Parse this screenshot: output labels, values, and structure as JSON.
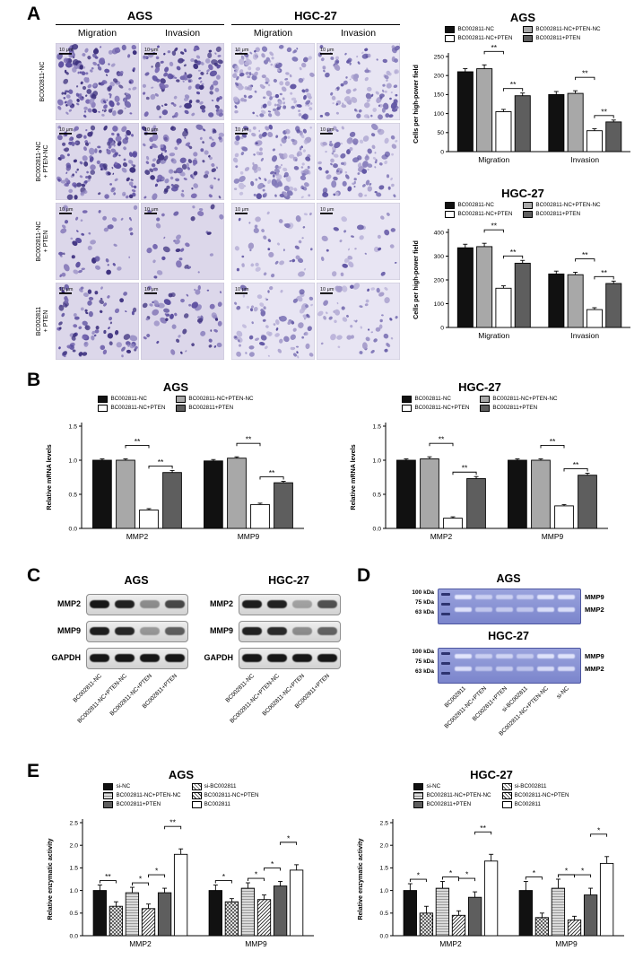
{
  "panels": {
    "a": "A",
    "b": "B",
    "c": "C",
    "d": "D",
    "e": "E"
  },
  "panel_a": {
    "cell_lines": [
      "AGS",
      "HGC-27"
    ],
    "assay_headers": [
      "Migration",
      "Invasion",
      "Migration",
      "Invasion"
    ],
    "row_labels": [
      [
        "BC002811-NC"
      ],
      [
        "BC002811-NC",
        "+ PTEN-NC"
      ],
      [
        "BC002811-NC",
        "+ PTEN"
      ],
      [
        "BC002811",
        "+ PTEN"
      ]
    ],
    "scale_bar_label": "10 μm",
    "cell_densities": [
      [
        150,
        120,
        140,
        110
      ],
      [
        145,
        118,
        132,
        104
      ],
      [
        48,
        34,
        44,
        30
      ],
      [
        92,
        60,
        82,
        56
      ]
    ]
  },
  "panel_c": {
    "cell_lines": [
      "AGS",
      "HGC-27"
    ],
    "protein_rows": [
      "MMP2",
      "MMP9",
      "GAPDH"
    ],
    "lane_labels": [
      "BC002811-NC",
      "BC002811-NC+PTEN-NC",
      "BC002811-NC+PTEN",
      "BC002811+PTEN"
    ],
    "band_intensities": {
      "ags": [
        [
          0.95,
          0.9,
          0.4,
          0.72
        ],
        [
          0.92,
          0.88,
          0.35,
          0.62
        ],
        [
          0.95,
          0.95,
          0.95,
          0.95
        ]
      ],
      "hgc": [
        [
          0.92,
          0.9,
          0.3,
          0.68
        ],
        [
          0.9,
          0.86,
          0.4,
          0.6
        ],
        [
          0.95,
          0.95,
          0.95,
          0.95
        ]
      ]
    }
  },
  "panel_d": {
    "cell_lines": [
      "AGS",
      "HGC-27"
    ],
    "marker_labels": [
      "100 kDa",
      "75 kDa",
      "63 kDa"
    ],
    "band_labels": [
      "MMP9",
      "MMP2"
    ],
    "lane_labels": [
      "BC002811",
      "BC002811-NC+PTEN",
      "BC002811+PTEN",
      "si-BC002811",
      "BC002811-NC+PTEN-NC",
      "si-NC"
    ],
    "band_intensities": {
      "ags": {
        "mmp9": [
          0.9,
          0.5,
          0.55,
          0.5,
          0.85,
          0.85
        ],
        "mmp2": [
          0.85,
          0.45,
          0.5,
          0.45,
          0.8,
          0.8
        ]
      },
      "hgc": {
        "mmp9": [
          0.9,
          0.5,
          0.6,
          0.45,
          0.85,
          0.85
        ],
        "mmp2": [
          0.8,
          0.4,
          0.5,
          0.4,
          0.75,
          0.75
        ]
      }
    }
  },
  "chart_data": [
    {
      "id": "panel-a-ags",
      "type": "bar",
      "title": "AGS",
      "ylabel": "Cells per high-power field",
      "ylim": [
        0,
        250
      ],
      "yticks": [
        0,
        50,
        100,
        150,
        200,
        250
      ],
      "categories": [
        "Migration",
        "Invasion"
      ],
      "legend_position": "top",
      "series": [
        {
          "name": "BC002811-NC",
          "fill": "black",
          "values": [
            210,
            150
          ],
          "errors": [
            8,
            8
          ]
        },
        {
          "name": "BC002811-NC+PTEN-NC",
          "fill": "gray",
          "values": [
            218,
            153
          ],
          "errors": [
            10,
            7
          ]
        },
        {
          "name": "BC002811-NC+PTEN",
          "fill": "white",
          "values": [
            105,
            55
          ],
          "errors": [
            6,
            5
          ]
        },
        {
          "name": "BC002811+PTEN",
          "fill": "dim",
          "values": [
            147,
            78
          ],
          "errors": [
            7,
            5
          ]
        }
      ],
      "sig": [
        {
          "cat": 0,
          "pairs": [
            [
              1,
              2,
              "**",
              1
            ],
            [
              2,
              3,
              "**",
              0
            ]
          ]
        },
        {
          "cat": 1,
          "pairs": [
            [
              1,
              2,
              "**",
              1
            ],
            [
              2,
              3,
              "**",
              0
            ]
          ]
        }
      ]
    },
    {
      "id": "panel-a-hgc27",
      "type": "bar",
      "title": "HGC-27",
      "ylabel": "Cells per high-power field",
      "ylim": [
        0,
        400
      ],
      "yticks": [
        0,
        100,
        200,
        300,
        400
      ],
      "categories": [
        "Migration",
        "Invasion"
      ],
      "legend_position": "top",
      "series": [
        {
          "name": "BC002811-NC",
          "fill": "black",
          "values": [
            335,
            225
          ],
          "errors": [
            15,
            12
          ]
        },
        {
          "name": "BC002811-NC+PTEN-NC",
          "fill": "gray",
          "values": [
            340,
            222
          ],
          "errors": [
            14,
            10
          ]
        },
        {
          "name": "BC002811-NC+PTEN",
          "fill": "white",
          "values": [
            165,
            75
          ],
          "errors": [
            10,
            8
          ]
        },
        {
          "name": "BC002811+PTEN",
          "fill": "dim",
          "values": [
            270,
            185
          ],
          "errors": [
            12,
            10
          ]
        }
      ],
      "sig": [
        {
          "cat": 0,
          "pairs": [
            [
              1,
              2,
              "**",
              1
            ],
            [
              2,
              3,
              "**",
              0
            ]
          ]
        },
        {
          "cat": 1,
          "pairs": [
            [
              1,
              2,
              "**",
              1
            ],
            [
              2,
              3,
              "**",
              0
            ]
          ]
        }
      ]
    },
    {
      "id": "panel-b-ags",
      "type": "bar",
      "title": "AGS",
      "ylabel": "Relative mRNA levels",
      "ylim": [
        0,
        1.5
      ],
      "yticks": [
        0,
        0.5,
        1,
        1.5
      ],
      "categories": [
        "MMP2",
        "MMP9"
      ],
      "legend_position": "top",
      "series": [
        {
          "name": "BC002811-NC",
          "fill": "black",
          "values": [
            1.0,
            0.99
          ],
          "errors": [
            0.02,
            0.02
          ]
        },
        {
          "name": "BC002811-NC+PTEN-NC",
          "fill": "gray",
          "values": [
            1.0,
            1.03
          ],
          "errors": [
            0.02,
            0.02
          ]
        },
        {
          "name": "BC002811-NC+PTEN",
          "fill": "white",
          "values": [
            0.27,
            0.35
          ],
          "errors": [
            0.02,
            0.02
          ]
        },
        {
          "name": "BC002811+PTEN",
          "fill": "dim",
          "values": [
            0.82,
            0.67
          ],
          "errors": [
            0.03,
            0.02
          ]
        }
      ],
      "sig": [
        {
          "cat": 0,
          "pairs": [
            [
              1,
              2,
              "**",
              1
            ],
            [
              2,
              3,
              "**",
              0
            ]
          ]
        },
        {
          "cat": 1,
          "pairs": [
            [
              1,
              2,
              "**",
              1
            ],
            [
              2,
              3,
              "**",
              0
            ]
          ]
        }
      ]
    },
    {
      "id": "panel-b-hgc27",
      "type": "bar",
      "title": "HGC-27",
      "ylabel": "Relative mRNA levels",
      "ylim": [
        0,
        1.5
      ],
      "yticks": [
        0,
        0.5,
        1,
        1.5
      ],
      "categories": [
        "MMP2",
        "MMP9"
      ],
      "legend_position": "top",
      "series": [
        {
          "name": "BC002811-NC",
          "fill": "black",
          "values": [
            1.0,
            1.0
          ],
          "errors": [
            0.02,
            0.02
          ]
        },
        {
          "name": "BC002811-NC+PTEN-NC",
          "fill": "gray",
          "values": [
            1.02,
            1.0
          ],
          "errors": [
            0.03,
            0.02
          ]
        },
        {
          "name": "BC002811-NC+PTEN",
          "fill": "white",
          "values": [
            0.15,
            0.33
          ],
          "errors": [
            0.02,
            0.02
          ]
        },
        {
          "name": "BC002811+PTEN",
          "fill": "dim",
          "values": [
            0.73,
            0.78
          ],
          "errors": [
            0.03,
            0.03
          ]
        }
      ],
      "sig": [
        {
          "cat": 0,
          "pairs": [
            [
              1,
              2,
              "**",
              1
            ],
            [
              2,
              3,
              "**",
              0
            ]
          ]
        },
        {
          "cat": 1,
          "pairs": [
            [
              1,
              2,
              "**",
              1
            ],
            [
              2,
              3,
              "**",
              0
            ]
          ]
        }
      ]
    },
    {
      "id": "panel-e-ags",
      "type": "bar",
      "title": "AGS",
      "ylabel": "Relative enzymatic activity",
      "ylim": [
        0,
        2.5
      ],
      "yticks": [
        0,
        0.5,
        1,
        1.5,
        2,
        2.5
      ],
      "categories": [
        "MMP2",
        "MMP9"
      ],
      "legend_position": "top",
      "series": [
        {
          "name": "si-NC",
          "fill": "black",
          "values": [
            1.0,
            1.0
          ],
          "errors": [
            0.12,
            0.12
          ]
        },
        {
          "name": "si-BC002811",
          "fill": "cross",
          "values": [
            0.65,
            0.75
          ],
          "errors": [
            0.1,
            0.07
          ]
        },
        {
          "name": "BC002811-NC+PTEN-NC",
          "fill": "hstripe",
          "values": [
            0.95,
            1.05
          ],
          "errors": [
            0.12,
            0.12
          ]
        },
        {
          "name": "BC002811-NC+PTEN",
          "fill": "hatch",
          "values": [
            0.6,
            0.8
          ],
          "errors": [
            0.1,
            0.1
          ]
        },
        {
          "name": "BC002811+PTEN",
          "fill": "dim",
          "values": [
            0.95,
            1.1
          ],
          "errors": [
            0.1,
            0.1
          ]
        },
        {
          "name": "BC002811",
          "fill": "white",
          "values": [
            1.8,
            1.45
          ],
          "errors": [
            0.12,
            0.12
          ]
        }
      ],
      "sig": [
        {
          "cat": 0,
          "pairs": [
            [
              0,
              1,
              "**",
              0
            ],
            [
              2,
              3,
              "*",
              0
            ],
            [
              3,
              4,
              "*",
              1
            ],
            [
              4,
              5,
              "**",
              2
            ]
          ]
        },
        {
          "cat": 1,
          "pairs": [
            [
              0,
              1,
              "*",
              0
            ],
            [
              2,
              3,
              "*",
              0
            ],
            [
              3,
              4,
              "*",
              1
            ],
            [
              4,
              5,
              "*",
              2
            ]
          ]
        }
      ]
    },
    {
      "id": "panel-e-hgc27",
      "type": "bar",
      "title": "HGC-27",
      "ylabel": "Relative enzymatic activity",
      "ylim": [
        0,
        2.5
      ],
      "yticks": [
        0,
        0.5,
        1,
        1.5,
        2,
        2.5
      ],
      "categories": [
        "MMP2",
        "MMP9"
      ],
      "legend_position": "top",
      "series": [
        {
          "name": "si-NC",
          "fill": "black",
          "values": [
            1.0,
            1.0
          ],
          "errors": [
            0.15,
            0.2
          ]
        },
        {
          "name": "si-BC002811",
          "fill": "cross",
          "values": [
            0.5,
            0.4
          ],
          "errors": [
            0.15,
            0.1
          ]
        },
        {
          "name": "BC002811-NC+PTEN-NC",
          "fill": "hstripe",
          "values": [
            1.05,
            1.05
          ],
          "errors": [
            0.15,
            0.2
          ]
        },
        {
          "name": "BC002811-NC+PTEN",
          "fill": "hatch",
          "values": [
            0.45,
            0.35
          ],
          "errors": [
            0.1,
            0.08
          ]
        },
        {
          "name": "BC002811+PTEN",
          "fill": "dim",
          "values": [
            0.85,
            0.9
          ],
          "errors": [
            0.12,
            0.15
          ]
        },
        {
          "name": "BC002811",
          "fill": "white",
          "values": [
            1.65,
            1.6
          ],
          "errors": [
            0.15,
            0.15
          ]
        }
      ],
      "sig": [
        {
          "cat": 0,
          "pairs": [
            [
              0,
              1,
              "*",
              0
            ],
            [
              2,
              3,
              "*",
              0
            ],
            [
              3,
              4,
              "*",
              1
            ],
            [
              4,
              5,
              "**",
              2
            ]
          ]
        },
        {
          "cat": 1,
          "pairs": [
            [
              0,
              1,
              "*",
              0
            ],
            [
              2,
              3,
              "*",
              0
            ],
            [
              3,
              4,
              "*",
              1
            ],
            [
              4,
              5,
              "*",
              2
            ]
          ]
        }
      ]
    }
  ]
}
